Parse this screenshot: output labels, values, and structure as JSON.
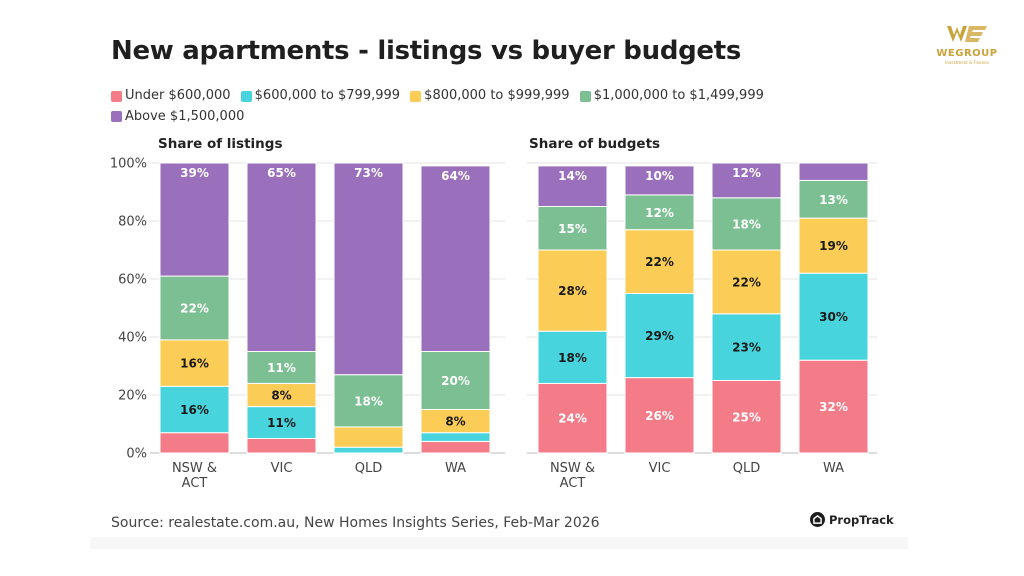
{
  "title": "New apartments - listings vs buyer budgets",
  "logo": {
    "name": "WEGROUP",
    "subtitle": "Investment & Finance",
    "color": "#c9a23a"
  },
  "legend": [
    {
      "label": "Under $600,000",
      "color": "#f47c88"
    },
    {
      "label": "$600,000 to $799,999",
      "color": "#47d4dc"
    },
    {
      "label": "$800,000 to $999,999",
      "color": "#fbcd56"
    },
    {
      "label": "$1,000,000 to $1,499,999",
      "color": "#7bbf93"
    },
    {
      "label": "Above $1,500,000",
      "color": "#9a6fbb"
    }
  ],
  "chart_data": [
    {
      "type": "bar",
      "stacked": true,
      "title": "Share of listings",
      "categories": [
        "NSW & ACT",
        "VIC",
        "QLD",
        "WA"
      ],
      "ylim": [
        0,
        100
      ],
      "yticks": [
        "0%",
        "20%",
        "40%",
        "60%",
        "80%",
        "100%"
      ],
      "grid": true,
      "series": [
        {
          "name": "Under $600,000",
          "values": [
            7,
            5,
            0,
            4
          ],
          "labels": [
            "",
            "",
            "",
            ""
          ]
        },
        {
          "name": "$600,000 to $799,999",
          "values": [
            16,
            11,
            2,
            3
          ],
          "labels": [
            "16%",
            "11%",
            "",
            ""
          ]
        },
        {
          "name": "$800,000 to $999,999",
          "values": [
            16,
            8,
            7,
            8
          ],
          "labels": [
            "16%",
            "8%",
            "",
            "8%"
          ]
        },
        {
          "name": "$1,000,000 to $1,499,999",
          "values": [
            22,
            11,
            18,
            20
          ],
          "labels": [
            "22%",
            "11%",
            "18%",
            "20%"
          ]
        },
        {
          "name": "Above $1,500,000",
          "values": [
            39,
            65,
            73,
            64
          ],
          "labels": [
            "39%",
            "65%",
            "73%",
            "64%"
          ]
        }
      ]
    },
    {
      "type": "bar",
      "stacked": true,
      "title": "Share of budgets",
      "categories": [
        "NSW & ACT",
        "VIC",
        "QLD",
        "WA"
      ],
      "ylim": [
        0,
        100
      ],
      "grid": true,
      "series": [
        {
          "name": "Under $600,000",
          "values": [
            24,
            26,
            25,
            32
          ],
          "labels": [
            "24%",
            "26%",
            "25%",
            "32%"
          ]
        },
        {
          "name": "$600,000 to $799,999",
          "values": [
            18,
            29,
            23,
            30
          ],
          "labels": [
            "18%",
            "29%",
            "23%",
            "30%"
          ]
        },
        {
          "name": "$800,000 to $999,999",
          "values": [
            28,
            22,
            22,
            19
          ],
          "labels": [
            "28%",
            "22%",
            "22%",
            "19%"
          ]
        },
        {
          "name": "$1,000,000 to $1,499,999",
          "values": [
            15,
            12,
            18,
            13
          ],
          "labels": [
            "15%",
            "12%",
            "18%",
            "13%"
          ]
        },
        {
          "name": "Above $1,500,000",
          "values": [
            14,
            10,
            12,
            6
          ],
          "labels": [
            "14%",
            "10%",
            "12%",
            ""
          ]
        }
      ]
    }
  ],
  "source": "Source: realestate.com.au, New Homes Insights Series, Feb-Mar 2026",
  "brand": "PropTrack"
}
